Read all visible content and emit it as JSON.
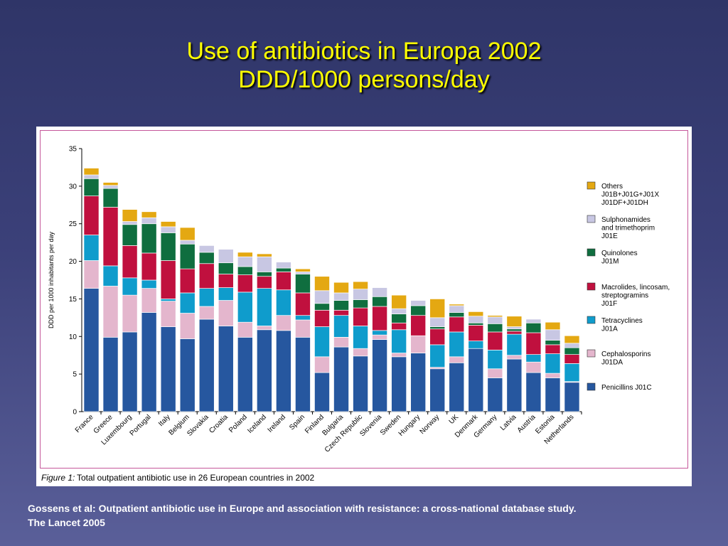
{
  "slide": {
    "title_line1": "Use of antibiotics in Europa 2002",
    "title_line2": "DDD/1000 persons/day",
    "source_line1": "Gossens et al: Outpatient antibiotic use in Europe and association with resistance: a cross-national database study.",
    "source_line2": "The Lancet 2005"
  },
  "figure": {
    "label": "Figure 1:",
    "caption": "Total outpatient antibiotic use in 26 European countries in 2002"
  },
  "chart_data": {
    "type": "bar",
    "stacked": true,
    "ylabel": "DDD per 1000 inhabitants per day",
    "xlabel": "",
    "ylim": [
      0,
      35
    ],
    "yticks": [
      0,
      5,
      10,
      15,
      20,
      25,
      30,
      35
    ],
    "grid": false,
    "legend_position": "right",
    "categories": [
      "France",
      "Greece",
      "Luxembourg",
      "Portugal",
      "Italy",
      "Belgium",
      "Slovakia",
      "Croatia",
      "Poland",
      "Iceland",
      "Ireland",
      "Spain",
      "Finland",
      "Bulgaria",
      "Czech Republic",
      "Slovenia",
      "Sweden",
      "Hungary",
      "Norway",
      "UK",
      "Denmark",
      "Germany",
      "Latvia",
      "Austria",
      "Estonia",
      "Netherlands"
    ],
    "series": [
      {
        "name": "Penicillins",
        "code": "J01C",
        "color": "#26579f",
        "values": [
          16.4,
          9.9,
          10.6,
          13.2,
          11.3,
          9.7,
          12.3,
          11.4,
          9.9,
          10.9,
          10.8,
          9.9,
          5.2,
          8.6,
          7.4,
          9.6,
          7.3,
          7.8,
          5.7,
          6.5,
          8.4,
          4.5,
          7.0,
          5.2,
          4.5,
          3.9
        ]
      },
      {
        "name": "Cephalosporins",
        "code": "J01DA",
        "color": "#e4b6cd",
        "values": [
          3.7,
          6.8,
          4.9,
          3.2,
          3.4,
          3.4,
          1.7,
          3.4,
          2.0,
          0.5,
          2.0,
          2.3,
          2.1,
          1.3,
          1.0,
          0.6,
          0.5,
          2.3,
          0.2,
          0.8,
          0.0,
          1.2,
          0.5,
          1.4,
          0.6,
          0.1
        ]
      },
      {
        "name": "Tetracyclines",
        "code": "J01A",
        "color": "#0f9ccc",
        "values": [
          3.4,
          2.7,
          2.3,
          1.1,
          0.3,
          2.7,
          2.4,
          1.7,
          4.0,
          5.0,
          3.4,
          0.6,
          4.0,
          2.9,
          3.0,
          0.6,
          3.1,
          0.0,
          3.0,
          3.3,
          1.0,
          2.5,
          2.8,
          1.0,
          2.6,
          2.4
        ]
      },
      {
        "name": "Macrolides, lincosam, streptogramins",
        "code": "J01F",
        "color": "#c0103e",
        "values": [
          5.2,
          7.8,
          4.3,
          3.6,
          5.1,
          3.2,
          3.3,
          1.8,
          2.3,
          1.6,
          2.4,
          3.0,
          2.2,
          0.7,
          2.4,
          3.2,
          0.9,
          2.7,
          2.1,
          2.0,
          2.1,
          2.4,
          0.4,
          2.9,
          1.2,
          1.2
        ]
      },
      {
        "name": "Quinolones",
        "code": "J01M",
        "color": "#0f6e3f",
        "values": [
          2.3,
          2.5,
          2.8,
          3.9,
          3.7,
          3.3,
          1.5,
          1.5,
          1.1,
          0.6,
          0.5,
          2.5,
          0.9,
          1.3,
          1.1,
          1.3,
          1.2,
          1.3,
          0.3,
          0.6,
          0.3,
          1.1,
          0.3,
          1.3,
          0.6,
          0.9
        ]
      },
      {
        "name": "Sulphonamides and trimethoprim",
        "code": "J01E",
        "color": "#c8c7e3",
        "values": [
          0.5,
          0.4,
          0.4,
          0.8,
          0.8,
          0.5,
          0.9,
          1.8,
          1.3,
          2.0,
          0.8,
          0.3,
          1.7,
          1.0,
          1.4,
          1.2,
          0.7,
          0.7,
          1.2,
          0.9,
          0.9,
          0.9,
          0.3,
          0.5,
          1.4,
          0.6
        ]
      },
      {
        "name": "Others",
        "code": "J01B+J01G+J01X J01DF+J01DH",
        "color": "#e4a812",
        "values": [
          0.9,
          0.4,
          1.6,
          0.8,
          0.7,
          1.7,
          0.0,
          0.0,
          0.6,
          0.4,
          0.0,
          0.4,
          1.9,
          1.4,
          1.0,
          0.0,
          1.8,
          0.0,
          2.5,
          0.2,
          0.6,
          0.2,
          1.4,
          0.0,
          1.0,
          1.0
        ]
      }
    ],
    "legend": [
      {
        "lines": [
          "Others",
          "J01B+J01G+J01X",
          "J01DF+J01DH"
        ],
        "color": "#e4a812"
      },
      {
        "lines": [
          "Sulphonamides",
          "and trimethoprim",
          "J01E"
        ],
        "color": "#c8c7e3"
      },
      {
        "lines": [
          "Quinolones",
          "J01M"
        ],
        "color": "#0f6e3f"
      },
      {
        "lines": [
          "Macrolides, lincosam,",
          "streptogramins",
          "J01F"
        ],
        "color": "#c0103e"
      },
      {
        "lines": [
          "Tetracyclines",
          "J01A"
        ],
        "color": "#0f9ccc"
      },
      {
        "lines": [
          "Cephalosporins",
          "J01DA"
        ],
        "color": "#e4b6cd"
      },
      {
        "lines": [
          "Penicillins J01C"
        ],
        "color": "#26579f"
      }
    ]
  }
}
